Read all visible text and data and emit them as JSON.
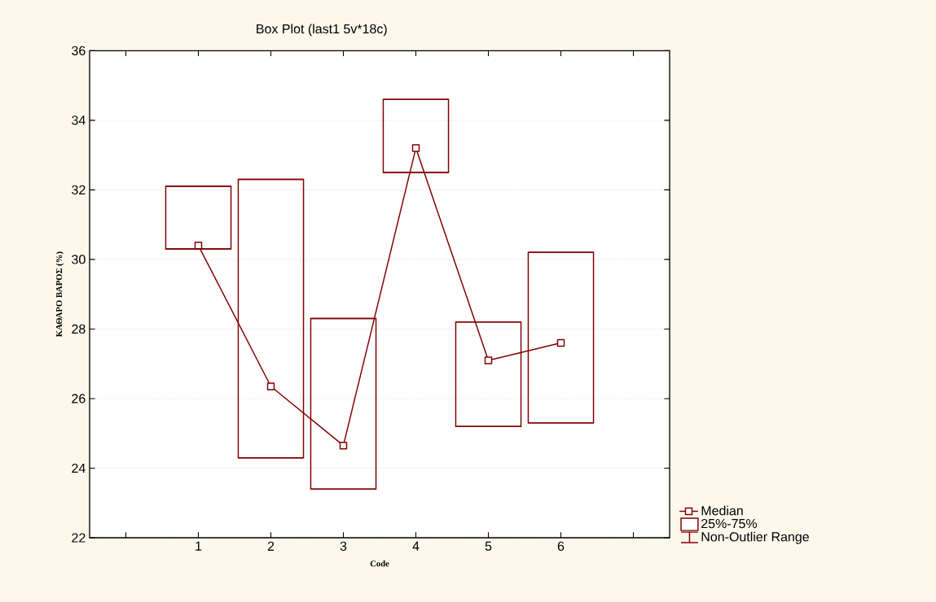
{
  "chart_data": {
    "type": "box",
    "title": "Box Plot (last1 5v*18c)",
    "xlabel": "Code",
    "ylabel": "ΚΑΘΑΡΟ ΒΑΡΟΣ (%)",
    "categories": [
      "1",
      "2",
      "3",
      "4",
      "5",
      "6"
    ],
    "ylim": [
      22,
      36
    ],
    "yticks": [
      22,
      24,
      26,
      28,
      30,
      32,
      34,
      36
    ],
    "grid": "y",
    "legend": "bottom right",
    "annotations": [
      "Non-Outlier Range"
    ],
    "series": [
      {
        "type": "box",
        "name": "25%-75%",
        "color": "#800000",
        "boxes": [
          {
            "low": 30.3,
            "q1": 30.3,
            "q3": 32.1,
            "high": 32.1
          },
          {
            "low": 24.3,
            "q1": 24.3,
            "q3": 32.3,
            "high": 32.3
          },
          {
            "low": 23.4,
            "q1": 23.4,
            "q3": 28.3,
            "high": 28.3
          },
          {
            "low": 32.5,
            "q1": 32.5,
            "q3": 34.6,
            "high": 34.6
          },
          {
            "low": 25.2,
            "q1": 25.2,
            "q3": 28.2,
            "high": 28.2
          },
          {
            "low": 25.3,
            "q1": 25.3,
            "q3": 30.2,
            "high": 30.2
          }
        ]
      },
      {
        "type": "line",
        "name": "Median",
        "color": "#800000",
        "marker": "square",
        "line_style": "solid",
        "values": [
          30.4,
          26.35,
          24.65,
          33.2,
          27.1,
          27.6
        ]
      }
    ]
  }
}
